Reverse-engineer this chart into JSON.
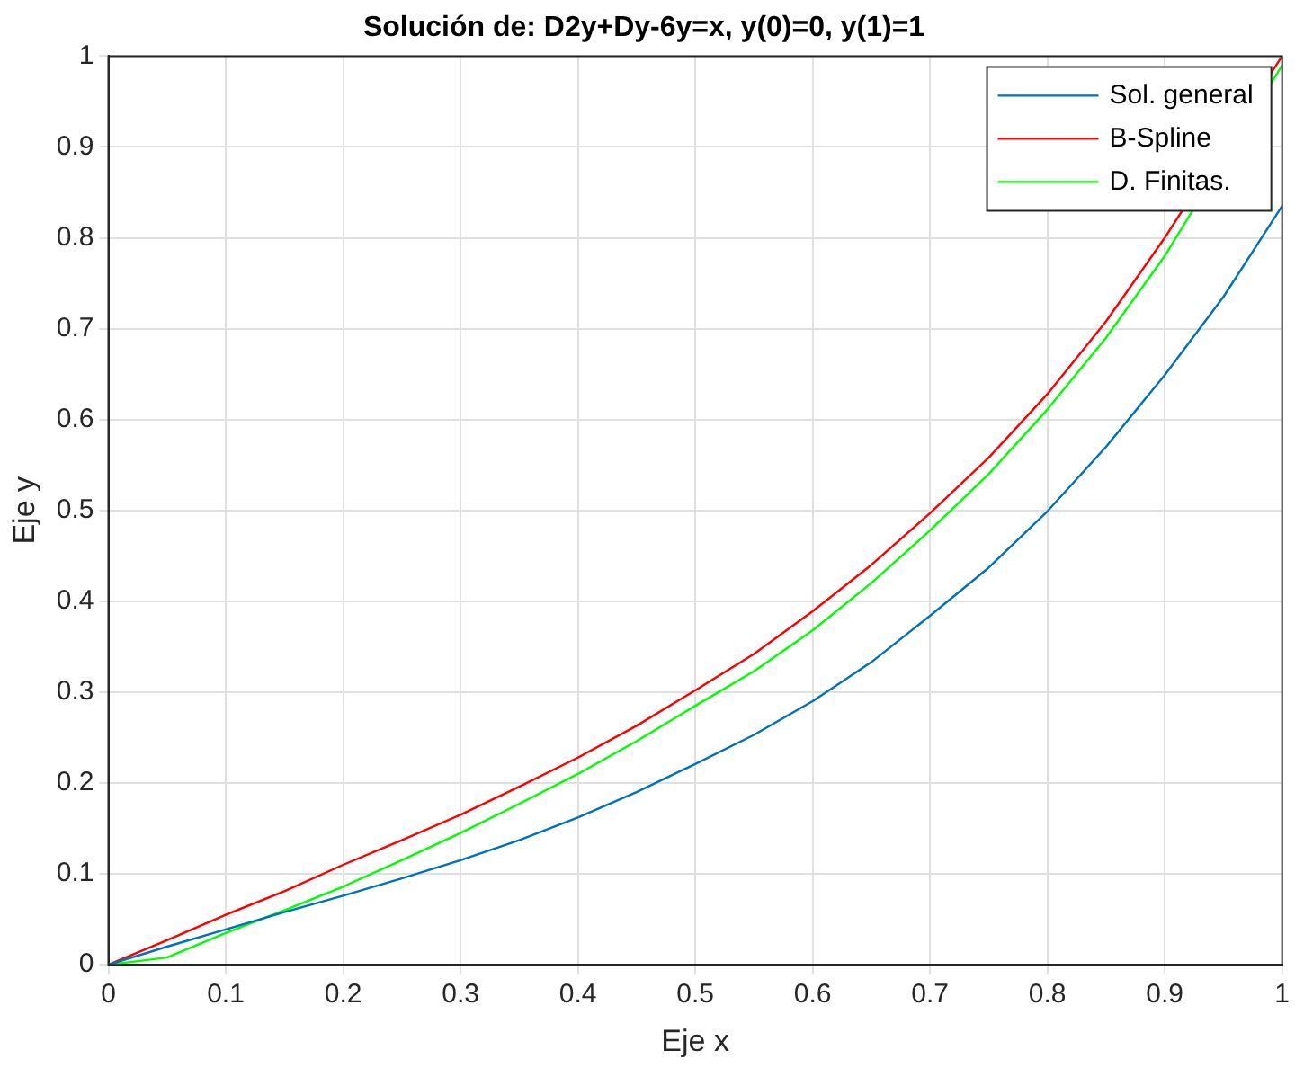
{
  "chart_data": {
    "type": "line",
    "title": "Solución de: D2y+Dy-6y=x, y(0)=0, y(1)=1",
    "xlabel": "Eje x",
    "ylabel": "Eje y",
    "x": [
      0,
      0.05,
      0.1,
      0.15,
      0.2,
      0.25,
      0.3,
      0.35,
      0.4,
      0.45,
      0.5,
      0.55,
      0.6,
      0.65,
      0.7,
      0.75,
      0.8,
      0.85,
      0.9,
      0.95,
      1
    ],
    "series": [
      {
        "name": "Sol. general",
        "color": "#0072bd",
        "values": [
          0,
          0.02,
          0.039,
          0.058,
          0.076,
          0.095,
          0.115,
          0.137,
          0.162,
          0.19,
          0.221,
          0.253,
          0.29,
          0.333,
          0.384,
          0.437,
          0.499,
          0.57,
          0.649,
          0.735,
          0.835
        ]
      },
      {
        "name": "B-Spline",
        "color": "#ff0000",
        "values": [
          0,
          0.027,
          0.055,
          0.081,
          0.11,
          0.137,
          0.165,
          0.196,
          0.228,
          0.263,
          0.302,
          0.342,
          0.389,
          0.44,
          0.497,
          0.558,
          0.628,
          0.708,
          0.8,
          null,
          1
        ]
      },
      {
        "name": "D. Finitas.",
        "color": "#00ff00",
        "values": [
          0,
          0.008,
          0.035,
          0.06,
          0.086,
          0.115,
          0.145,
          0.177,
          0.21,
          0.246,
          0.285,
          0.323,
          0.368,
          0.42,
          0.478,
          0.54,
          0.611,
          0.69,
          0.78,
          null,
          0.99
        ]
      }
    ],
    "xlim": [
      0,
      1
    ],
    "ylim": [
      0,
      1
    ],
    "xticks": [
      0,
      0.1,
      0.2,
      0.3,
      0.4,
      0.5,
      0.6,
      0.7,
      0.8,
      0.9,
      1
    ],
    "yticks": [
      0,
      0.1,
      0.2,
      0.3,
      0.4,
      0.5,
      0.6,
      0.7,
      0.8,
      0.9,
      1
    ],
    "grid": true,
    "legend": "top right",
    "marker": "none",
    "line_style": "solid"
  }
}
